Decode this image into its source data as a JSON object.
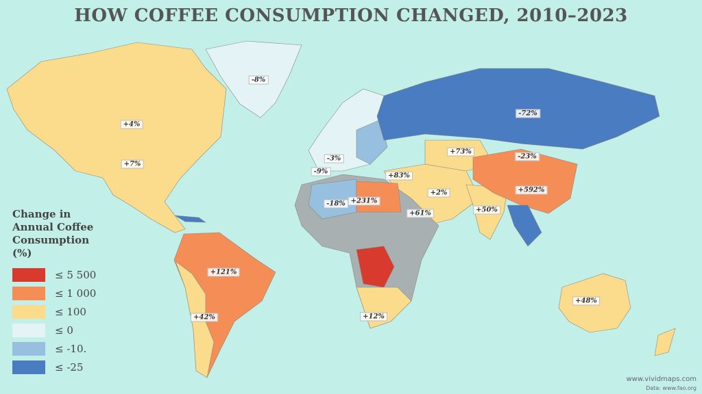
{
  "header": {
    "title": "HOW COFFEE CONSUMPTION CHANGED, 2010–2023"
  },
  "labels": [
    "-8%",
    "+4%",
    "+7%",
    "-3%",
    "-9%",
    "+83%",
    "+73%",
    "-23%",
    "-72%",
    "+592%",
    "+2%",
    "-18%",
    "+231%",
    "+61%",
    "+50%",
    "+121%",
    "+42%",
    "+12%",
    "+48%"
  ],
  "legend": {
    "title_lines": [
      "Change in",
      "Annual Coffee",
      "Consumption",
      "(%)"
    ],
    "items": [
      {
        "label": "≤ 5 500",
        "color": "#d83a2e"
      },
      {
        "label": "≤ 1 000",
        "color": "#f58d57"
      },
      {
        "label": "≤ 100",
        "color": "#fbdc8c"
      },
      {
        "label": "≤ 0",
        "color": "#e4f3f6"
      },
      {
        "label": "≤ -10.",
        "color": "#97bfdf"
      },
      {
        "label": "≤ -25",
        "color": "#4a7cc1"
      }
    ]
  },
  "credits": {
    "site": "www.vividmaps.com",
    "source": "Data: www.fao.org"
  }
}
